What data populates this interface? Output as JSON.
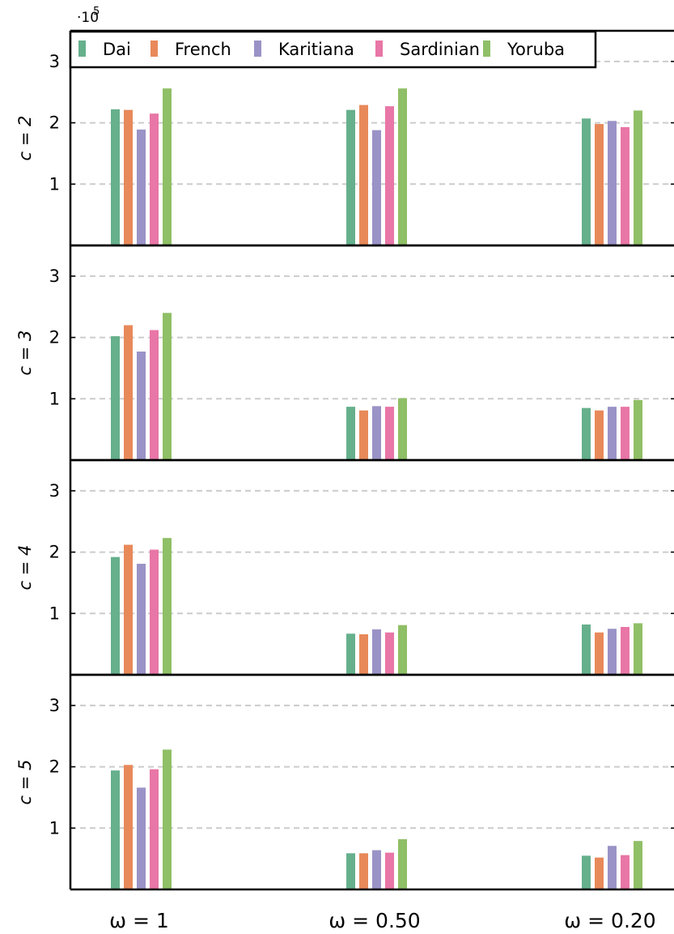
{
  "chart_data": {
    "type": "bar",
    "categories": [
      "ω = 1",
      "ω = 0.50",
      "ω = 0.20"
    ],
    "scale_note": {
      "base": "·10",
      "exponent": "5"
    },
    "ylim": [
      0,
      3.5
    ],
    "yticks": [
      1,
      2,
      3
    ],
    "grid": "horizontal dashed",
    "legend_position": "top-left",
    "colors": {
      "Dai": "#66b08c",
      "French": "#e8895a",
      "Karitiana": "#9a93c7",
      "Sardinian": "#e876a6",
      "Yoruba": "#8fbf66"
    },
    "legend": [
      "Dai",
      "French",
      "Karitiana",
      "Sardinian",
      "Yoruba"
    ],
    "panels": [
      {
        "ylabel": "c = 2",
        "series": [
          {
            "name": "Dai",
            "values": [
              2.22,
              2.21,
              2.07
            ]
          },
          {
            "name": "French",
            "values": [
              2.21,
              2.29,
              1.98
            ]
          },
          {
            "name": "Karitiana",
            "values": [
              1.89,
              1.88,
              2.03
            ]
          },
          {
            "name": "Sardinian",
            "values": [
              2.15,
              2.27,
              1.93
            ]
          },
          {
            "name": "Yoruba",
            "values": [
              2.56,
              2.56,
              2.2
            ]
          }
        ]
      },
      {
        "ylabel": "c = 3",
        "series": [
          {
            "name": "Dai",
            "values": [
              2.02,
              0.87,
              0.85
            ]
          },
          {
            "name": "French",
            "values": [
              2.2,
              0.81,
              0.81
            ]
          },
          {
            "name": "Karitiana",
            "values": [
              1.77,
              0.88,
              0.87
            ]
          },
          {
            "name": "Sardinian",
            "values": [
              2.12,
              0.87,
              0.87
            ]
          },
          {
            "name": "Yoruba",
            "values": [
              2.4,
              1.01,
              0.98
            ]
          }
        ]
      },
      {
        "ylabel": "c = 4",
        "series": [
          {
            "name": "Dai",
            "values": [
              1.92,
              0.67,
              0.82
            ]
          },
          {
            "name": "French",
            "values": [
              2.12,
              0.66,
              0.69
            ]
          },
          {
            "name": "Karitiana",
            "values": [
              1.81,
              0.74,
              0.75
            ]
          },
          {
            "name": "Sardinian",
            "values": [
              2.04,
              0.69,
              0.78
            ]
          },
          {
            "name": "Yoruba",
            "values": [
              2.23,
              0.81,
              0.84
            ]
          }
        ]
      },
      {
        "ylabel": "c = 5",
        "series": [
          {
            "name": "Dai",
            "values": [
              1.94,
              0.59,
              0.55
            ]
          },
          {
            "name": "French",
            "values": [
              2.03,
              0.59,
              0.52
            ]
          },
          {
            "name": "Karitiana",
            "values": [
              1.66,
              0.64,
              0.71
            ]
          },
          {
            "name": "Sardinian",
            "values": [
              1.96,
              0.6,
              0.56
            ]
          },
          {
            "name": "Yoruba",
            "values": [
              2.28,
              0.82,
              0.79
            ]
          }
        ]
      }
    ]
  }
}
